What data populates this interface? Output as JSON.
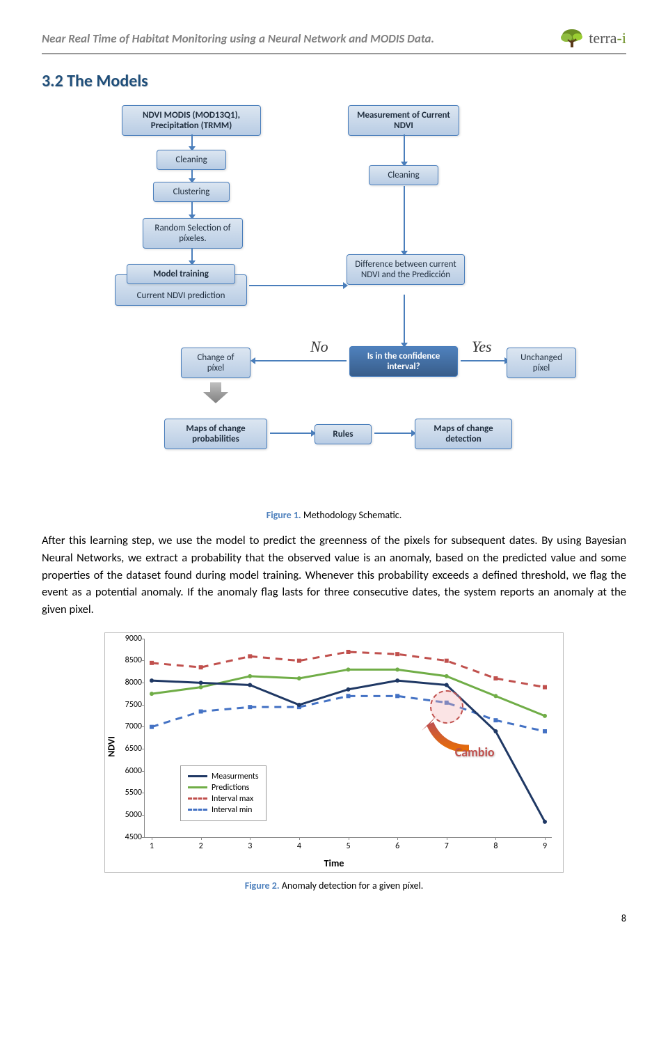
{
  "header": {
    "title": "Near Real Time of Habitat Monitoring using a Neural Network and MODIS Data.",
    "logo_text": "terra",
    "logo_dot": "-i"
  },
  "section": {
    "title": "3.2 The Models"
  },
  "flow": {
    "n1": "NDVI MODIS (MOD13Q1), Precipitation (TRMM)",
    "n2": "Cleaning",
    "n3": "Clustering",
    "n4": "Random Selection of píxeles.",
    "n5": "Model training",
    "n5b": "Current NDVI prediction",
    "m1": "Measurement of Current NDVI",
    "m2": "Cleaning",
    "m3": "Difference between current NDVI and the Predicción",
    "d": "Is in the confidence interval?",
    "no": "No",
    "yes": "Yes",
    "left": "Change of píxel",
    "right": "Unchanged píxel",
    "b1": "Maps of change probabilities",
    "b2": "Rules",
    "b3": "Maps of change detection"
  },
  "fig1": {
    "label": "Figure 1.",
    "text": " Methodology Schematic."
  },
  "paragraph": "After this learning step, we use the model to predict the greenness of the pixels for subsequent dates. By using Bayesian Neural Networks, we extract a probability that the observed value is an anomaly, based on the predicted value and some properties of the dataset found during model training. Whenever this probability exceeds a defined threshold, we flag the event as a potential anomaly. If the anomaly flag lasts for three consecutive dates, the system reports an anomaly at the given pixel.",
  "chart": {
    "ylabel": "NDVI",
    "xlabel": "Time",
    "ymin": 4500,
    "ymax": 9000,
    "ystep": 500,
    "xticks": [
      1,
      2,
      3,
      4,
      5,
      6,
      7,
      8,
      9
    ],
    "series": {
      "measurements": {
        "label": "Measurments",
        "color": "#1f3864",
        "dash": false,
        "values": [
          8050,
          8000,
          7950,
          7500,
          7850,
          8050,
          7950,
          6900,
          4850
        ]
      },
      "predictions": {
        "label": "Predictions",
        "color": "#70ad47",
        "dash": false,
        "values": [
          7750,
          7900,
          8150,
          8100,
          8300,
          8300,
          8150,
          7700,
          7250
        ]
      },
      "interval_max": {
        "label": "Interval max",
        "color": "#c0504d",
        "dash": true,
        "values": [
          8450,
          8350,
          8600,
          8500,
          8700,
          8650,
          8500,
          8100,
          7900
        ]
      },
      "interval_min": {
        "label": "Interval min",
        "color": "#4472c4",
        "dash": true,
        "values": [
          7000,
          7350,
          7450,
          7450,
          7700,
          7700,
          7550,
          7150,
          6900
        ]
      }
    },
    "cambio": "Cambio"
  },
  "fig2": {
    "label": "Figure 2.",
    "text": " Anomaly detection for a given píxel."
  },
  "page": "8",
  "colors": {
    "box_border": "#4a7ebb",
    "accent": "#4f81bd",
    "cambio": "#c0504d"
  }
}
